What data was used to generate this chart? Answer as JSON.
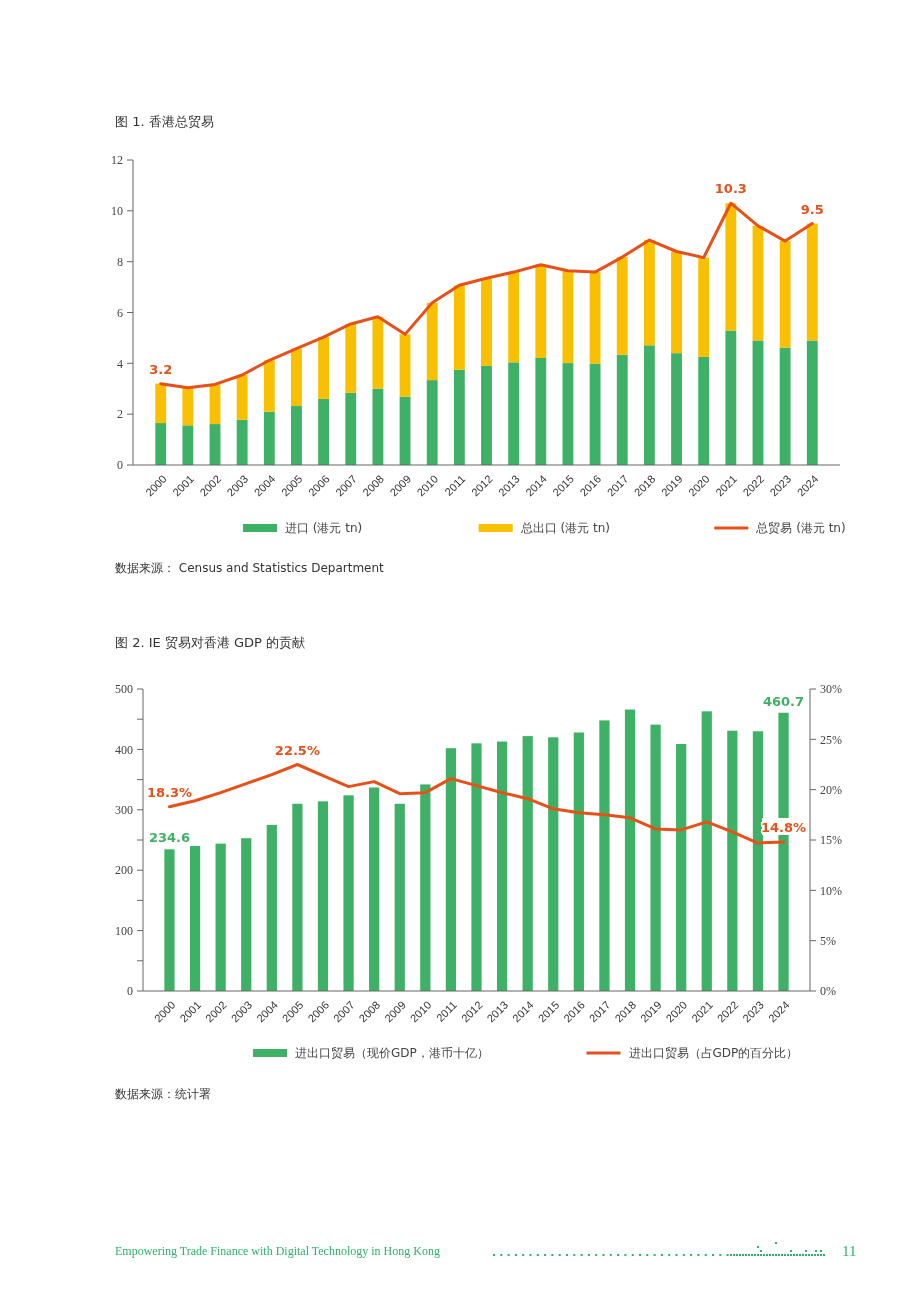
{
  "chart_data": [
    {
      "type": "bar",
      "stacked": true,
      "title": "图 1. 香港总贸易",
      "categories": [
        "2000",
        "2001",
        "2002",
        "2003",
        "2004",
        "2005",
        "2006",
        "2007",
        "2008",
        "2009",
        "2010",
        "2011",
        "2012",
        "2013",
        "2014",
        "2015",
        "2016",
        "2017",
        "2018",
        "2019",
        "2020",
        "2021",
        "2022",
        "2023",
        "2024"
      ],
      "series": [
        {
          "name": "进口 (港元 tn)",
          "color": "#3fb166",
          "values": [
            1.65,
            1.56,
            1.61,
            1.78,
            2.1,
            2.32,
            2.6,
            2.84,
            3.01,
            2.69,
            3.34,
            3.75,
            3.9,
            4.04,
            4.21,
            4.01,
            3.99,
            4.34,
            4.71,
            4.4,
            4.25,
            5.29,
            4.9,
            4.62,
            4.9
          ]
        },
        {
          "name": "总出口 (港元 tn)",
          "color": "#f8c000",
          "values": [
            1.55,
            1.48,
            1.56,
            1.76,
            2.02,
            2.26,
            2.43,
            2.71,
            2.82,
            2.45,
            3.04,
            3.32,
            3.45,
            3.55,
            3.67,
            3.63,
            3.6,
            3.84,
            4.14,
            4.0,
            3.91,
            5.01,
            4.51,
            4.19,
            4.6
          ]
        },
        {
          "name": "总贸易 (港元 tn)",
          "type": "line",
          "color": "#e8501a",
          "values": [
            3.2,
            3.04,
            3.17,
            3.54,
            4.12,
            4.58,
            5.03,
            5.55,
            5.83,
            5.14,
            6.38,
            7.07,
            7.35,
            7.59,
            7.88,
            7.64,
            7.59,
            8.18,
            8.85,
            8.4,
            8.16,
            10.3,
            9.41,
            8.81,
            9.5
          ],
          "value_labels": [
            "3.2",
            null,
            null,
            null,
            null,
            null,
            null,
            null,
            null,
            null,
            null,
            null,
            null,
            null,
            null,
            null,
            null,
            null,
            null,
            null,
            null,
            "10.3",
            null,
            null,
            "9.5"
          ]
        }
      ],
      "ylim": [
        0,
        12
      ],
      "yticks": [
        0,
        2,
        4,
        6,
        8,
        10,
        12
      ],
      "legend": "bottom",
      "marker": "none",
      "line_style": "solid",
      "grid": false,
      "annotations": [
        "数据来源： Census and Statistics Department"
      ]
    },
    {
      "type": "bar",
      "title": "图 2. IE 贸易对香港 GDP 的贡献",
      "categories": [
        "2000",
        "2001",
        "2002",
        "2003",
        "2004",
        "2005",
        "2006",
        "2007",
        "2008",
        "2009",
        "2010",
        "2011",
        "2012",
        "2013",
        "2014",
        "2015",
        "2016",
        "2017",
        "2018",
        "2019",
        "2020",
        "2021",
        "2022",
        "2023",
        "2024"
      ],
      "series": [
        {
          "name": "进出口贸易（现价GDP，港币十亿）",
          "color": "#3fb166",
          "values": [
            234.6,
            240,
            244,
            253,
            275,
            310,
            314,
            324,
            337,
            310,
            342,
            402,
            410,
            413,
            422,
            420,
            428,
            448,
            466,
            441,
            409,
            463,
            431,
            430,
            460.7
          ],
          "value_labels": [
            "234.6",
            null,
            null,
            null,
            null,
            null,
            null,
            null,
            null,
            null,
            null,
            null,
            null,
            null,
            null,
            null,
            null,
            null,
            null,
            null,
            null,
            null,
            null,
            null,
            "460.7"
          ]
        },
        {
          "name": "进出口贸易（占GDP的百分比）",
          "type": "line",
          "axis": "y2",
          "color": "#e8501a",
          "values": [
            18.3,
            18.9,
            19.7,
            20.6,
            21.5,
            22.5,
            21.4,
            20.3,
            20.8,
            19.6,
            19.7,
            21.1,
            20.4,
            19.7,
            19.1,
            18.1,
            17.7,
            17.5,
            17.2,
            16.1,
            16.0,
            16.8,
            15.8,
            14.7,
            14.8
          ],
          "value_labels": [
            "18.3%",
            null,
            null,
            null,
            null,
            "22.5%",
            null,
            null,
            null,
            null,
            null,
            null,
            null,
            null,
            null,
            null,
            null,
            null,
            null,
            null,
            null,
            null,
            null,
            null,
            "14.8%"
          ]
        }
      ],
      "ylim": [
        0,
        500
      ],
      "yticks": [
        0,
        {
          "value": 50,
          "label": null
        },
        100,
        {
          "value": 150,
          "label": null
        },
        200,
        {
          "value": 250,
          "label": null
        },
        300,
        {
          "value": 350,
          "label": null
        },
        400,
        {
          "value": 450,
          "label": null
        },
        500
      ],
      "y2lim": [
        0,
        30
      ],
      "y2ticks": [
        {
          "value": 0,
          "label": "0%"
        },
        {
          "value": 5,
          "label": "5%"
        },
        {
          "value": 10,
          "label": "10%"
        },
        {
          "value": 15,
          "label": "15%"
        },
        {
          "value": 20,
          "label": "20%"
        },
        {
          "value": 25,
          "label": "25%"
        },
        {
          "value": 30,
          "label": "30%"
        }
      ],
      "legend": "bottom",
      "marker": "none",
      "line_style": "solid",
      "grid": false,
      "annotations": [
        "数据来源：统计署",
        "Empowering Trade Finance with Digital Technology in Hong Kong",
        "11"
      ]
    }
  ]
}
